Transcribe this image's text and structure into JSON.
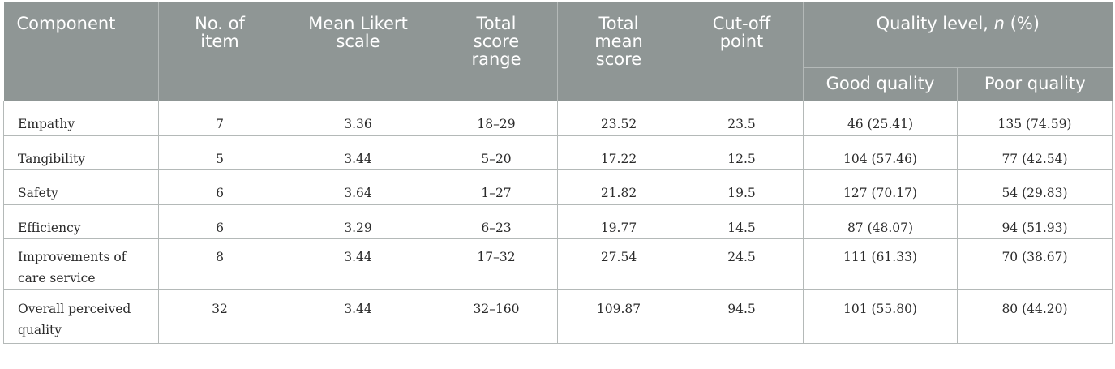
{
  "headers": {
    "component": "Component",
    "no_of_item": "No. of item",
    "mean_likert": "Mean Likert scale",
    "total_score_range": "Total score range",
    "total_mean_score": "Total mean score",
    "cutoff": "Cut-off point",
    "quality_level_prefix": "Quality level, ",
    "quality_level_n": "n",
    "quality_level_suffix": " (%)",
    "good_quality": "Good quality",
    "poor_quality": "Poor quality"
  },
  "rows": [
    {
      "component": "Empathy",
      "items": "7",
      "mean": "3.36",
      "range": "18–29",
      "total_mean": "23.52",
      "cutoff": "23.5",
      "good": "46 (25.41)",
      "poor": "135 (74.59)"
    },
    {
      "component": "Tangibility",
      "items": "5",
      "mean": "3.44",
      "range": "5–20",
      "total_mean": "17.22",
      "cutoff": "12.5",
      "good": "104 (57.46)",
      "poor": "77 (42.54)"
    },
    {
      "component": "Safety",
      "items": "6",
      "mean": "3.64",
      "range": "1–27",
      "total_mean": "21.82",
      "cutoff": "19.5",
      "good": "127 (70.17)",
      "poor": "54 (29.83)"
    },
    {
      "component": "Efficiency",
      "items": "6",
      "mean": "3.29",
      "range": "6–23",
      "total_mean": "19.77",
      "cutoff": "14.5",
      "good": "87 (48.07)",
      "poor": "94 (51.93)"
    },
    {
      "component": "Improvements of care service",
      "items": "8",
      "mean": "3.44",
      "range": "17–32",
      "total_mean": "27.54",
      "cutoff": "24.5",
      "good": "111 (61.33)",
      "poor": "70 (38.67)"
    },
    {
      "component": "Overall perceived quality",
      "items": "32",
      "mean": "3.44",
      "range": "32–160",
      "total_mean": "109.87",
      "cutoff": "94.5",
      "good": "101 (55.80)",
      "poor": "80 (44.20)"
    }
  ]
}
